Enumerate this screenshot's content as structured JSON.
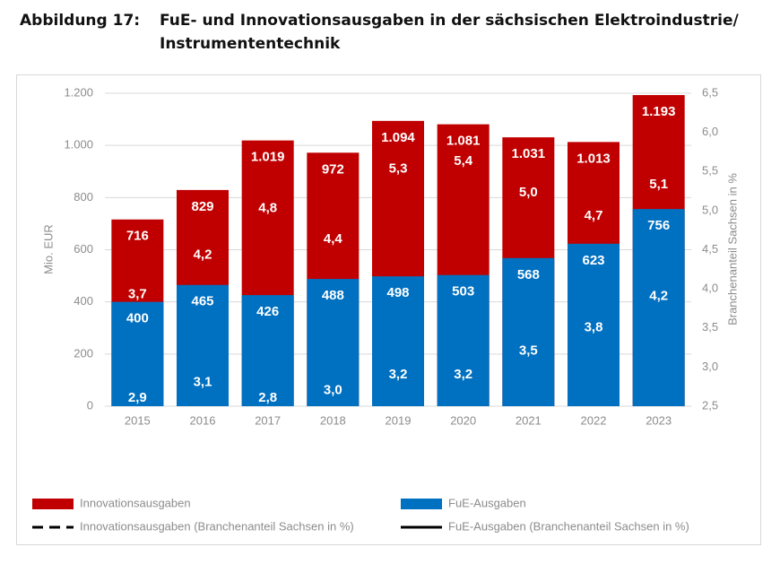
{
  "chart_data": {
    "type": "bar",
    "title_label": "Abbildung 17:",
    "title": "FuE- und Innovationsausgaben in der sächsischen Elektroindustrie/ Instrumententechnik",
    "ylabel": "Mio. EUR",
    "y2label": "Branchenanteil Sachsen in %",
    "categories": [
      "2015",
      "2016",
      "2017",
      "2018",
      "2019",
      "2020",
      "2021",
      "2022",
      "2023"
    ],
    "series": [
      {
        "name": "Innovationsausgaben",
        "type": "bar",
        "color": "#c00000",
        "values": [
          716,
          829,
          1019,
          972,
          1094,
          1081,
          1031,
          1013,
          1193
        ],
        "value_labels": [
          "716",
          "829",
          "1.019",
          "972",
          "1.094",
          "1.081",
          "1.031",
          "1.013",
          "1.193"
        ]
      },
      {
        "name": "FuE-Ausgaben",
        "type": "bar",
        "color": "#0070c0",
        "values": [
          400,
          465,
          426,
          488,
          498,
          503,
          568,
          623,
          756
        ],
        "value_labels": [
          "400",
          "465",
          "426",
          "488",
          "498",
          "503",
          "568",
          "623",
          "756"
        ]
      },
      {
        "name": "Innovationsausgaben (Branchenanteil Sachsen in %)",
        "type": "line",
        "axis": "y2",
        "style": "dashed",
        "color": "#000000",
        "values": [
          3.7,
          4.2,
          4.8,
          4.4,
          5.3,
          5.4,
          5.0,
          4.7,
          5.1
        ],
        "value_labels": [
          "3,7",
          "4,2",
          "4,8",
          "4,4",
          "5,3",
          "5,4",
          "5,0",
          "4,7",
          "5,1"
        ]
      },
      {
        "name": "FuE-Ausgaben (Branchenanteil Sachsen in %)",
        "type": "line",
        "axis": "y2",
        "style": "solid",
        "color": "#000000",
        "values": [
          2.9,
          3.1,
          2.8,
          3.0,
          3.2,
          3.2,
          3.5,
          3.8,
          4.2
        ],
        "value_labels": [
          "2,9",
          "3,1",
          "2,8",
          "3,0",
          "3,2",
          "3,2",
          "3,5",
          "3,8",
          "4,2"
        ]
      }
    ],
    "ylim": [
      0,
      1200
    ],
    "yticks": [
      0,
      200,
      400,
      600,
      800,
      {
        "value": 1000,
        "label": "1.000"
      },
      {
        "value": 1200,
        "label": "1.200"
      }
    ],
    "y2lim": [
      2.5,
      6.5
    ],
    "y2ticks": [
      {
        "value": 2.5,
        "label": "2,5"
      },
      {
        "value": 3.0,
        "label": "3,0"
      },
      {
        "value": 3.5,
        "label": "3,5"
      },
      {
        "value": 4.0,
        "label": "4,0"
      },
      {
        "value": 4.5,
        "label": "4,5"
      },
      {
        "value": 5.0,
        "label": "5,0"
      },
      {
        "value": 5.5,
        "label": "5,5"
      },
      {
        "value": 6.0,
        "label": "6,0"
      },
      {
        "value": 6.5,
        "label": "6,5"
      }
    ],
    "grid": true
  }
}
